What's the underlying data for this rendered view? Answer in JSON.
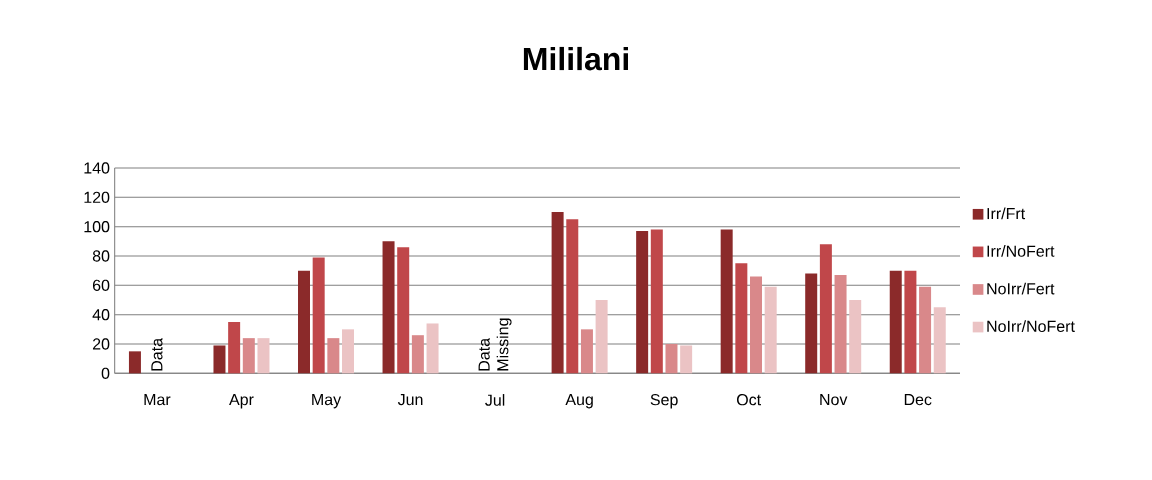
{
  "chart_data": {
    "type": "bar",
    "title": "Mililani",
    "categories": [
      "Mar",
      "Apr",
      "May",
      "Jun",
      "Jul",
      "Aug",
      "Sep",
      "Oct",
      "Nov",
      "Dec"
    ],
    "series": [
      {
        "name": "Irr/Frt",
        "color": "#8b2a2a",
        "values": [
          15,
          19,
          70,
          90,
          null,
          110,
          97,
          98,
          68,
          70
        ]
      },
      {
        "name": "Irr/NoFert",
        "color": "#c0474a",
        "values": [
          null,
          35,
          79,
          86,
          null,
          105,
          98,
          75,
          88,
          70
        ]
      },
      {
        "name": "NoIrr/Fert",
        "color": "#d9888a",
        "values": [
          null,
          24,
          24,
          26,
          null,
          30,
          20,
          66,
          67,
          59
        ]
      },
      {
        "name": "NoIrr/NoFert",
        "color": "#ebc3c4",
        "values": [
          null,
          24,
          30,
          34,
          null,
          50,
          19,
          59,
          50,
          45
        ]
      }
    ],
    "ylim": [
      0,
      140
    ],
    "yticks": [
      0,
      20,
      40,
      60,
      80,
      100,
      120,
      140
    ],
    "grid": "y",
    "legend": "right",
    "annotations": [
      "Data",
      "Data Missing"
    ]
  }
}
